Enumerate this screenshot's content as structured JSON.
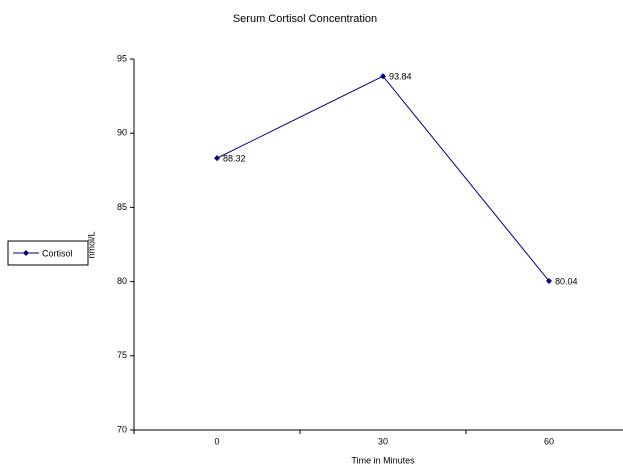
{
  "chart_data": {
    "type": "line",
    "title": "Serum Cortisol Concentration",
    "x_label": "Time in Minutes",
    "y_label": "nmol/L",
    "categories": [
      "0",
      "30",
      "60"
    ],
    "series": [
      {
        "name": "Cortisol",
        "color": "#000080",
        "values": [
          88.32,
          93.84,
          80.04
        ]
      }
    ],
    "ylim": [
      70,
      95
    ],
    "yticks": [
      70,
      75,
      80,
      85,
      90,
      95
    ],
    "legend": "left"
  }
}
